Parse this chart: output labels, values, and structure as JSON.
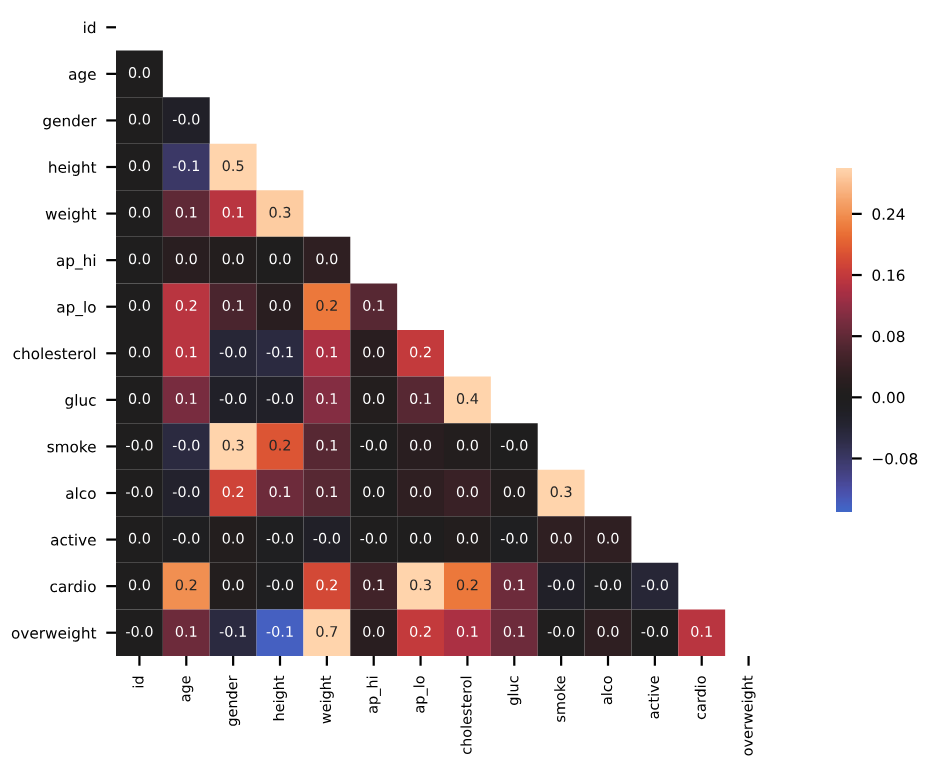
{
  "chart_data": {
    "type": "heatmap",
    "categories": [
      "id",
      "age",
      "gender",
      "height",
      "weight",
      "ap_hi",
      "ap_lo",
      "cholesterol",
      "gluc",
      "smoke",
      "alco",
      "active",
      "cardio",
      "overweight"
    ],
    "y_categories": [
      "id",
      "age",
      "gender",
      "height",
      "weight",
      "ap_hi",
      "ap_lo",
      "cholesterol",
      "gluc",
      "smoke",
      "alco",
      "active",
      "cardio",
      "overweight"
    ],
    "cells": [
      [
        null,
        null,
        null,
        null,
        null,
        null,
        null,
        null,
        null,
        null,
        null,
        null,
        null,
        null
      ],
      [
        0.0,
        null,
        null,
        null,
        null,
        null,
        null,
        null,
        null,
        null,
        null,
        null,
        null,
        null
      ],
      [
        0.0,
        -0.02,
        null,
        null,
        null,
        null,
        null,
        null,
        null,
        null,
        null,
        null,
        null,
        null
      ],
      [
        0.0,
        -0.08,
        0.5,
        null,
        null,
        null,
        null,
        null,
        null,
        null,
        null,
        null,
        null,
        null
      ],
      [
        0.0,
        0.08,
        0.15,
        0.29,
        null,
        null,
        null,
        null,
        null,
        null,
        null,
        null,
        null,
        null
      ],
      [
        0.0,
        0.02,
        0.01,
        0.0,
        0.03,
        null,
        null,
        null,
        null,
        null,
        null,
        null,
        null,
        null
      ],
      [
        0.0,
        0.15,
        0.06,
        0.02,
        0.22,
        0.07,
        null,
        null,
        null,
        null,
        null,
        null,
        null,
        null
      ],
      [
        0.0,
        0.15,
        -0.04,
        -0.05,
        0.14,
        0.02,
        0.16,
        null,
        null,
        null,
        null,
        null,
        null,
        null
      ],
      [
        0.0,
        0.1,
        -0.02,
        -0.02,
        0.11,
        0.01,
        0.07,
        0.4,
        null,
        null,
        null,
        null,
        null,
        null
      ],
      [
        -0.0,
        -0.05,
        0.34,
        0.19,
        0.07,
        -0.0,
        0.02,
        0.01,
        -0.0,
        null,
        null,
        null,
        null,
        null
      ],
      [
        -0.0,
        -0.03,
        0.17,
        0.09,
        0.07,
        0.0,
        0.03,
        0.04,
        0.01,
        0.34,
        null,
        null,
        null,
        null
      ],
      [
        0.0,
        -0.01,
        0.01,
        -0.01,
        -0.02,
        -0.0,
        0.0,
        0.01,
        -0.01,
        0.03,
        0.03,
        null,
        null,
        null
      ],
      [
        0.0,
        0.24,
        0.01,
        -0.01,
        0.18,
        0.05,
        0.33,
        0.22,
        0.09,
        -0.02,
        -0.01,
        -0.04,
        null,
        null
      ],
      [
        -0.0,
        0.09,
        -0.05,
        -0.14,
        0.7,
        0.02,
        0.16,
        0.14,
        0.09,
        -0.0,
        0.03,
        -0.0,
        0.15,
        null
      ]
    ],
    "cell_labels": [
      [
        null,
        null,
        null,
        null,
        null,
        null,
        null,
        null,
        null,
        null,
        null,
        null,
        null,
        null
      ],
      [
        "0.0",
        null,
        null,
        null,
        null,
        null,
        null,
        null,
        null,
        null,
        null,
        null,
        null,
        null
      ],
      [
        "0.0",
        "-0.0",
        null,
        null,
        null,
        null,
        null,
        null,
        null,
        null,
        null,
        null,
        null,
        null
      ],
      [
        "0.0",
        "-0.1",
        "0.5",
        null,
        null,
        null,
        null,
        null,
        null,
        null,
        null,
        null,
        null,
        null
      ],
      [
        "0.0",
        "0.1",
        "0.1",
        "0.3",
        null,
        null,
        null,
        null,
        null,
        null,
        null,
        null,
        null,
        null
      ],
      [
        "0.0",
        "0.0",
        "0.0",
        "0.0",
        "0.0",
        null,
        null,
        null,
        null,
        null,
        null,
        null,
        null,
        null
      ],
      [
        "0.0",
        "0.2",
        "0.1",
        "0.0",
        "0.2",
        "0.1",
        null,
        null,
        null,
        null,
        null,
        null,
        null,
        null
      ],
      [
        "0.0",
        "0.1",
        "-0.0",
        "-0.1",
        "0.1",
        "0.0",
        "0.2",
        null,
        null,
        null,
        null,
        null,
        null,
        null
      ],
      [
        "0.0",
        "0.1",
        "-0.0",
        "-0.0",
        "0.1",
        "0.0",
        "0.1",
        "0.4",
        null,
        null,
        null,
        null,
        null,
        null
      ],
      [
        "-0.0",
        "-0.0",
        "0.3",
        "0.2",
        "0.1",
        "-0.0",
        "0.0",
        "0.0",
        "-0.0",
        null,
        null,
        null,
        null,
        null
      ],
      [
        "-0.0",
        "-0.0",
        "0.2",
        "0.1",
        "0.1",
        "0.0",
        "0.0",
        "0.0",
        "0.0",
        "0.3",
        null,
        null,
        null,
        null
      ],
      [
        "0.0",
        "-0.0",
        "0.0",
        "-0.0",
        "-0.0",
        "-0.0",
        "0.0",
        "0.0",
        "-0.0",
        "0.0",
        "0.0",
        null,
        null,
        null
      ],
      [
        "0.0",
        "0.2",
        "0.0",
        "-0.0",
        "0.2",
        "0.1",
        "0.3",
        "0.2",
        "0.1",
        "-0.0",
        "-0.0",
        "-0.0",
        null,
        null
      ],
      [
        "-0.0",
        "0.1",
        "-0.1",
        "-0.1",
        "0.7",
        "0.0",
        "0.2",
        "0.1",
        "0.1",
        "-0.0",
        "0.0",
        "-0.0",
        "0.1",
        null
      ]
    ],
    "clim": [
      -0.15,
      0.3
    ],
    "cticks": [
      {
        "value": -0.08,
        "label": "−0.08"
      },
      {
        "value": 0,
        "label": "0.00"
      },
      {
        "value": 0.08,
        "label": "0.08"
      },
      {
        "value": 0.16,
        "label": "0.16"
      },
      {
        "value": 0.24,
        "label": "0.24"
      }
    ]
  }
}
